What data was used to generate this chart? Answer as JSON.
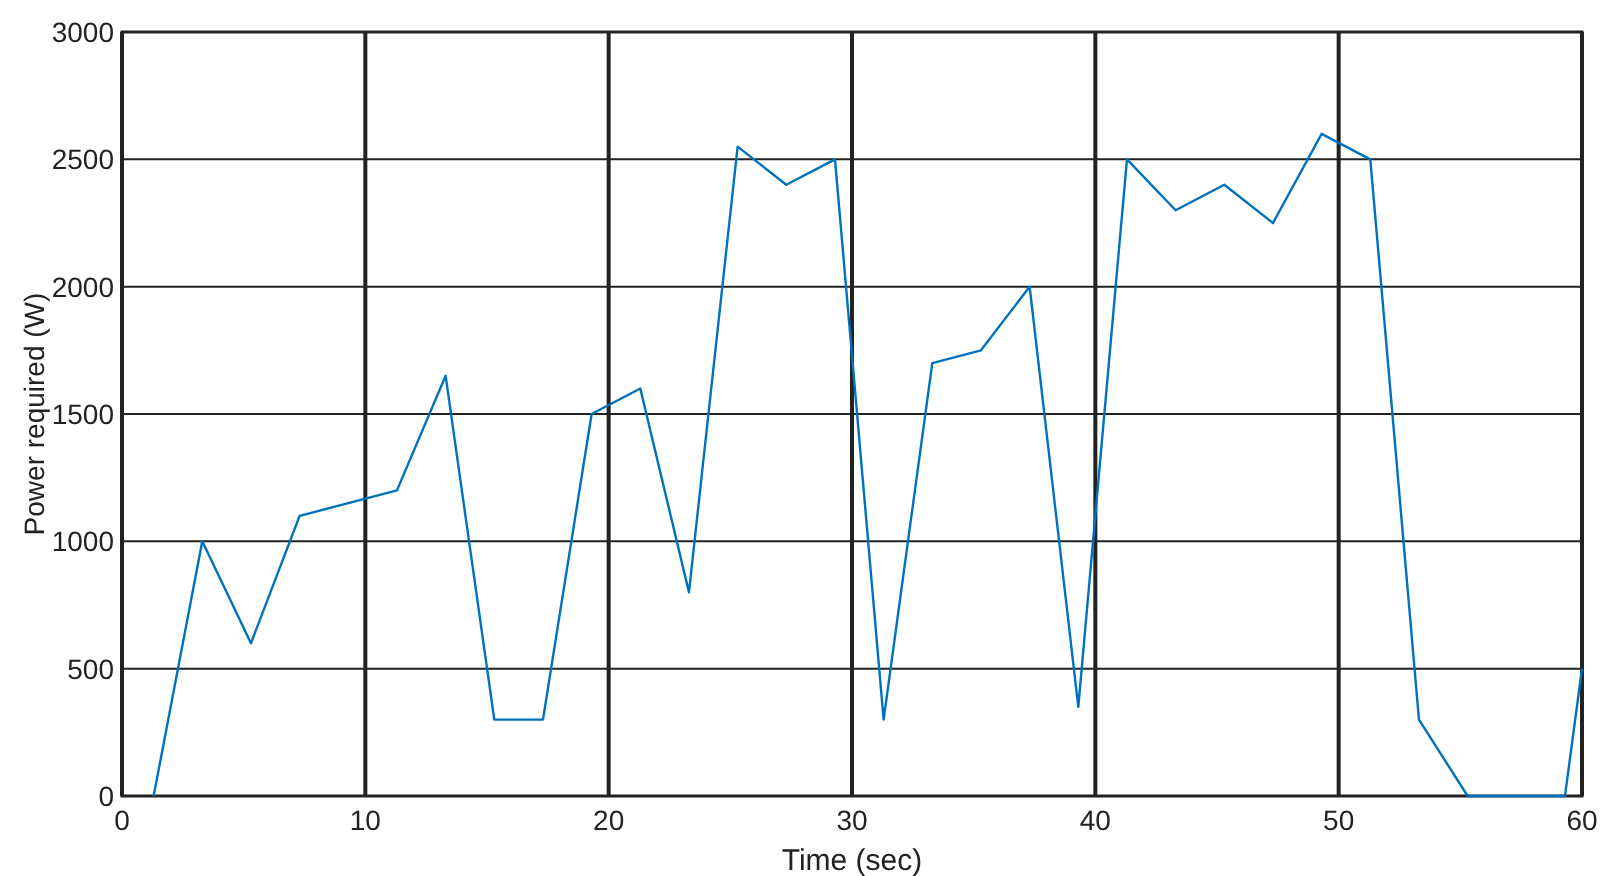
{
  "chart_data": {
    "type": "line",
    "xlabel": "Time (sec)",
    "ylabel": "Power required (W)",
    "x": [
      1.3,
      3.3,
      5.3,
      7.3,
      11.3,
      13.3,
      15.3,
      17.3,
      19.3,
      21.3,
      23.3,
      25.3,
      27.3,
      29.3,
      31.3,
      33.3,
      35.3,
      37.3,
      39.3,
      41.3,
      43.3,
      45.3,
      47.3,
      49.3,
      51.3,
      53.3,
      55.3,
      59.3,
      60
    ],
    "series": [
      {
        "color": "#0072bd",
        "values": [
          0,
          1000,
          600,
          1100,
          1200,
          1650,
          300,
          300,
          1500,
          1600,
          800,
          2550,
          2400,
          2500,
          300,
          1700,
          1750,
          2000,
          350,
          2500,
          2300,
          2400,
          2250,
          2600,
          2500,
          300,
          0,
          0,
          500
        ]
      }
    ],
    "xlim": [
      0,
      60
    ],
    "xticks": [
      0,
      10,
      20,
      30,
      40,
      50,
      60
    ],
    "ylim": [
      0,
      3000
    ],
    "yticks": [
      0,
      500,
      1000,
      1500,
      2000,
      2500,
      3000
    ],
    "grid": true
  }
}
